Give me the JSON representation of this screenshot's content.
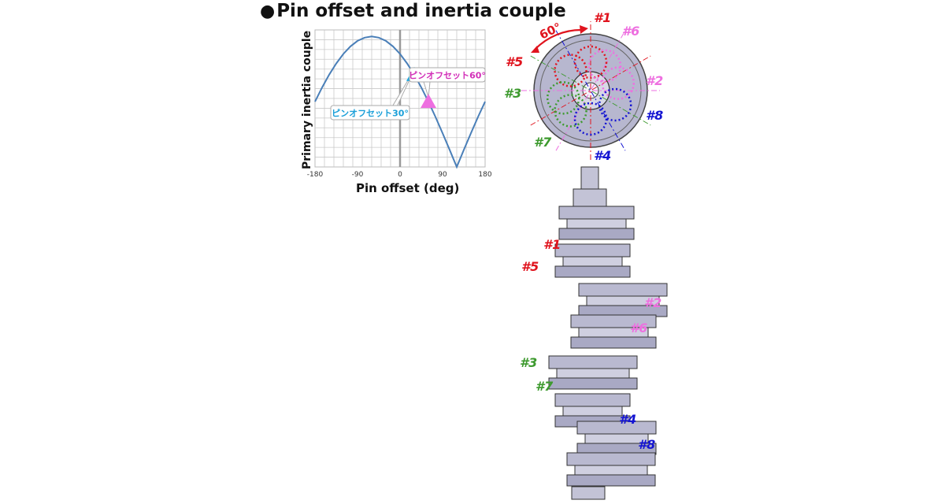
{
  "title": "Pin offset and inertia couple",
  "title_bullet": "●",
  "colors": {
    "curve": "#4a7fb8",
    "grid": "#c9c9c9",
    "marker_30": "#1fa8e0",
    "marker_60": "#ee6fe0",
    "label_30_text": "#1a9fd8",
    "label_60_text": "#d22fb8",
    "cyl_1": "#e0141e",
    "cyl_5": "#e0141e",
    "cyl_6": "#ee6fe0",
    "cyl_2": "#ee6fe0",
    "cyl_3": "#3d9a2e",
    "cyl_7": "#3d9a2e",
    "cyl_8": "#1414d2",
    "cyl_4": "#1414d2",
    "metal": "#b9b9d0"
  },
  "chart_data": {
    "type": "line",
    "ylabel": "Primary inertia couple",
    "xlabel": "Pin offset  (deg)",
    "xlim": [
      -180,
      180
    ],
    "xticks": [
      "-180",
      "-90",
      "0",
      "90",
      "180"
    ],
    "grid": true,
    "series": [
      {
        "x": [
          -180,
          -165,
          -150,
          -135,
          -120,
          -105,
          -90,
          -75,
          -60,
          -45,
          -30,
          -15,
          0,
          15,
          30,
          45,
          60,
          75,
          90,
          105,
          120,
          135,
          150,
          165,
          180
        ],
        "y": [
          0.5,
          0.609,
          0.707,
          0.793,
          0.866,
          0.924,
          0.966,
          0.991,
          1.0,
          0.991,
          0.966,
          0.924,
          0.866,
          0.793,
          0.707,
          0.609,
          0.5,
          0.383,
          0.259,
          0.131,
          0.0,
          0.131,
          0.259,
          0.383,
          0.5
        ]
      }
    ],
    "annotations": [
      {
        "label": "ピンオフセット30°",
        "x": 30,
        "marker": "triangle-up"
      },
      {
        "label": "ピンオフセット60°",
        "x": 60,
        "marker": "triangle-up"
      }
    ]
  },
  "diagram": {
    "angle_label": "60°",
    "cylinder_labels": [
      "#1",
      "#6",
      "#5",
      "#2",
      "#3",
      "#8",
      "#7",
      "#4"
    ],
    "crank_labels": [
      "#1",
      "#5",
      "#2",
      "#6",
      "#3",
      "#7",
      "#4",
      "#8"
    ]
  }
}
